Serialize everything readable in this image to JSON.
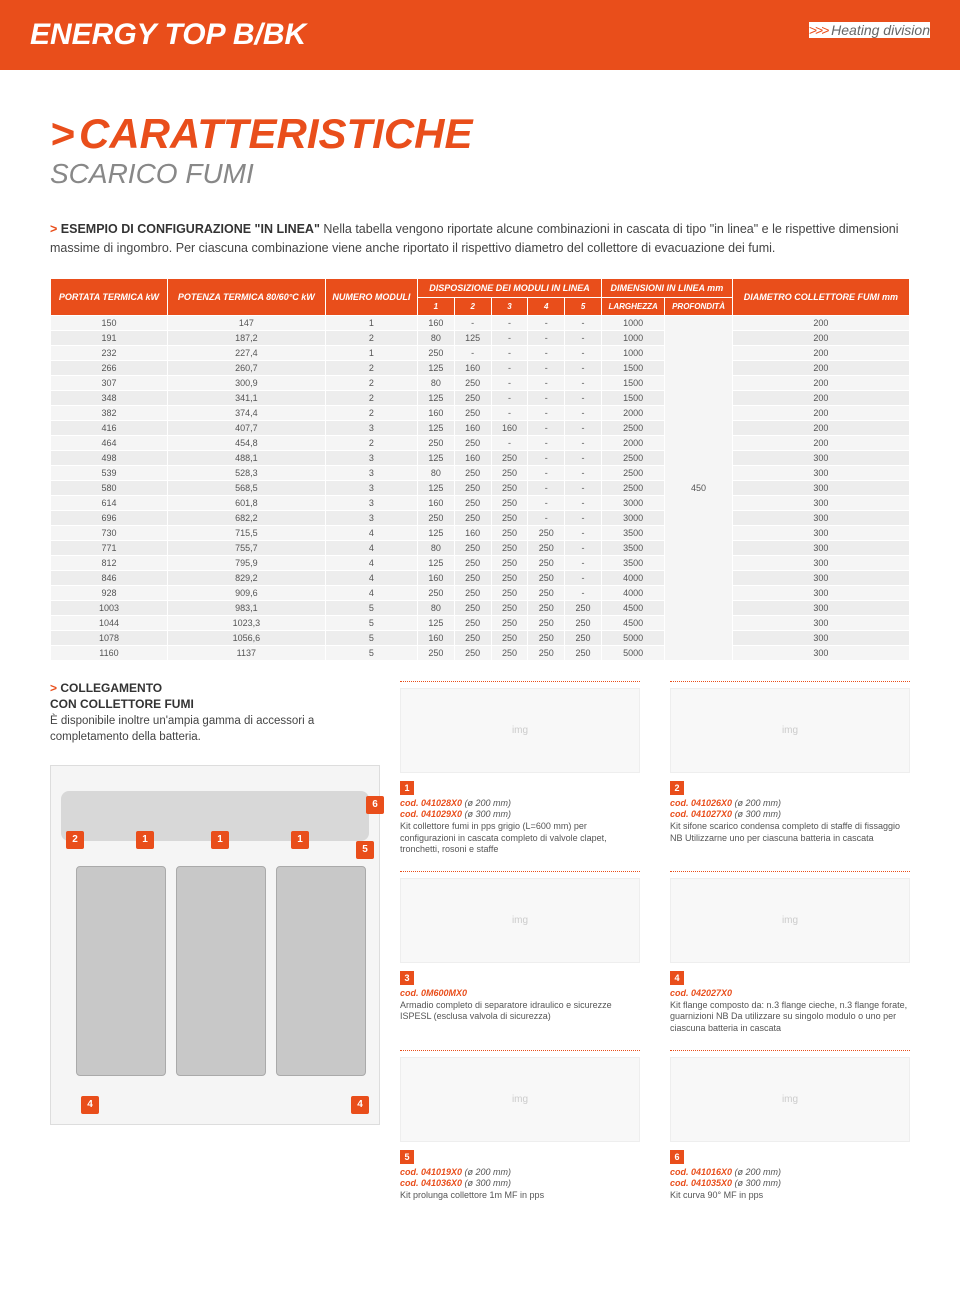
{
  "header": {
    "title": "ENERGY TOP B/BK",
    "division_arrows": ">>>",
    "division": "Heating division"
  },
  "main": {
    "gt": ">",
    "title": "CARATTERISTICHE",
    "subtitle": "SCARICO FUMI"
  },
  "intro": {
    "gt": ">",
    "lead": "ESEMPIO DI CONFIGURAZIONE \"IN LINEA\"",
    "text": " Nella tabella vengono riportate alcune combinazioni in cascata di tipo \"in linea\" e le rispettive dimensioni massime di ingombro. Per ciascuna combinazione viene anche riportato il rispettivo diametro del collettore di evacuazione dei fumi."
  },
  "table": {
    "headers": {
      "portata": "PORTATA TERMICA kW",
      "potenza": "POTENZA TERMICA 80/60°C kW",
      "numero": "NUMERO MODULI",
      "disposizione": "DISPOSIZIONE DEI MODULI IN LINEA",
      "dimensioni": "DIMENSIONI IN LINEA mm",
      "diametro": "DIAMETRO COLLETTORE FUMI mm",
      "c1": "1",
      "c2": "2",
      "c3": "3",
      "c4": "4",
      "c5": "5",
      "larghezza": "LARGHEZZA",
      "profondita": "PROFONDITÀ"
    },
    "profondita_value": "450",
    "rows": [
      [
        "150",
        "147",
        "1",
        "160",
        "-",
        "-",
        "-",
        "-",
        "1000",
        "200"
      ],
      [
        "191",
        "187,2",
        "2",
        "80",
        "125",
        "-",
        "-",
        "-",
        "1000",
        "200"
      ],
      [
        "232",
        "227,4",
        "1",
        "250",
        "-",
        "-",
        "-",
        "-",
        "1000",
        "200"
      ],
      [
        "266",
        "260,7",
        "2",
        "125",
        "160",
        "-",
        "-",
        "-",
        "1500",
        "200"
      ],
      [
        "307",
        "300,9",
        "2",
        "80",
        "250",
        "-",
        "-",
        "-",
        "1500",
        "200"
      ],
      [
        "348",
        "341,1",
        "2",
        "125",
        "250",
        "-",
        "-",
        "-",
        "1500",
        "200"
      ],
      [
        "382",
        "374,4",
        "2",
        "160",
        "250",
        "-",
        "-",
        "-",
        "2000",
        "200"
      ],
      [
        "416",
        "407,7",
        "3",
        "125",
        "160",
        "160",
        "-",
        "-",
        "2500",
        "200"
      ],
      [
        "464",
        "454,8",
        "2",
        "250",
        "250",
        "-",
        "-",
        "-",
        "2000",
        "200"
      ],
      [
        "498",
        "488,1",
        "3",
        "125",
        "160",
        "250",
        "-",
        "-",
        "2500",
        "300"
      ],
      [
        "539",
        "528,3",
        "3",
        "80",
        "250",
        "250",
        "-",
        "-",
        "2500",
        "300"
      ],
      [
        "580",
        "568,5",
        "3",
        "125",
        "250",
        "250",
        "-",
        "-",
        "2500",
        "300"
      ],
      [
        "614",
        "601,8",
        "3",
        "160",
        "250",
        "250",
        "-",
        "-",
        "3000",
        "300"
      ],
      [
        "696",
        "682,2",
        "3",
        "250",
        "250",
        "250",
        "-",
        "-",
        "3000",
        "300"
      ],
      [
        "730",
        "715,5",
        "4",
        "125",
        "160",
        "250",
        "250",
        "-",
        "3500",
        "300"
      ],
      [
        "771",
        "755,7",
        "4",
        "80",
        "250",
        "250",
        "250",
        "-",
        "3500",
        "300"
      ],
      [
        "812",
        "795,9",
        "4",
        "125",
        "250",
        "250",
        "250",
        "-",
        "3500",
        "300"
      ],
      [
        "846",
        "829,2",
        "4",
        "160",
        "250",
        "250",
        "250",
        "-",
        "4000",
        "300"
      ],
      [
        "928",
        "909,6",
        "4",
        "250",
        "250",
        "250",
        "250",
        "-",
        "4000",
        "300"
      ],
      [
        "1003",
        "983,1",
        "5",
        "80",
        "250",
        "250",
        "250",
        "250",
        "4500",
        "300"
      ],
      [
        "1044",
        "1023,3",
        "5",
        "125",
        "250",
        "250",
        "250",
        "250",
        "4500",
        "300"
      ],
      [
        "1078",
        "1056,6",
        "5",
        "160",
        "250",
        "250",
        "250",
        "250",
        "5000",
        "300"
      ],
      [
        "1160",
        "1137",
        "5",
        "250",
        "250",
        "250",
        "250",
        "250",
        "5000",
        "300"
      ]
    ]
  },
  "collegamento": {
    "gt": ">",
    "title": "COLLEGAMENTO",
    "title2": "CON COLLETTORE FUMI",
    "text": "È disponibile inoltre un'ampia gamma di accessori a completamento della batteria."
  },
  "callouts": {
    "c2": "2",
    "c1a": "1",
    "c1b": "1",
    "c1c": "1",
    "c6": "6",
    "c5": "5",
    "c4a": "4",
    "c4b": "4"
  },
  "products": [
    {
      "badge": "1",
      "code1": "cod. 041028X0",
      "spec1": "(ø 200 mm)",
      "code2": "cod. 041029X0",
      "spec2": "(ø 300 mm)",
      "desc": "Kit collettore fumi in pps grigio (L=600 mm) per configurazioni in cascata completo di valvole clapet, tronchetti, rosoni e staffe"
    },
    {
      "badge": "2",
      "code1": "cod. 041026X0",
      "spec1": "(ø 200 mm)",
      "code2": "cod. 041027X0",
      "spec2": "(ø 300 mm)",
      "desc": "Kit sifone scarico condensa completo di staffe di fissaggio NB Utilizzarne uno per ciascuna batteria in cascata"
    },
    {
      "badge": "3",
      "code1": "cod. 0M600MX0",
      "spec1": "",
      "code2": "",
      "spec2": "",
      "desc": "Armadio completo di separatore idraulico e sicurezze ISPESL (esclusa valvola di sicurezza)"
    },
    {
      "badge": "4",
      "code1": "cod. 042027X0",
      "spec1": "",
      "code2": "",
      "spec2": "",
      "desc": "Kit flange composto da: n.3 flange cieche, n.3 flange forate, guarnizioni NB Da utilizzare su singolo modulo o uno per ciascuna batteria in cascata"
    },
    {
      "badge": "5",
      "code1": "cod. 041019X0",
      "spec1": "(ø 200 mm)",
      "code2": "cod. 041036X0",
      "spec2": "(ø 300 mm)",
      "desc": "Kit prolunga collettore 1m MF in pps"
    },
    {
      "badge": "6",
      "code1": "cod. 041016X0",
      "spec1": "(ø 200 mm)",
      "code2": "cod. 041035X0",
      "spec2": "(ø 300 mm)",
      "desc": "Kit curva 90° MF in pps"
    }
  ]
}
